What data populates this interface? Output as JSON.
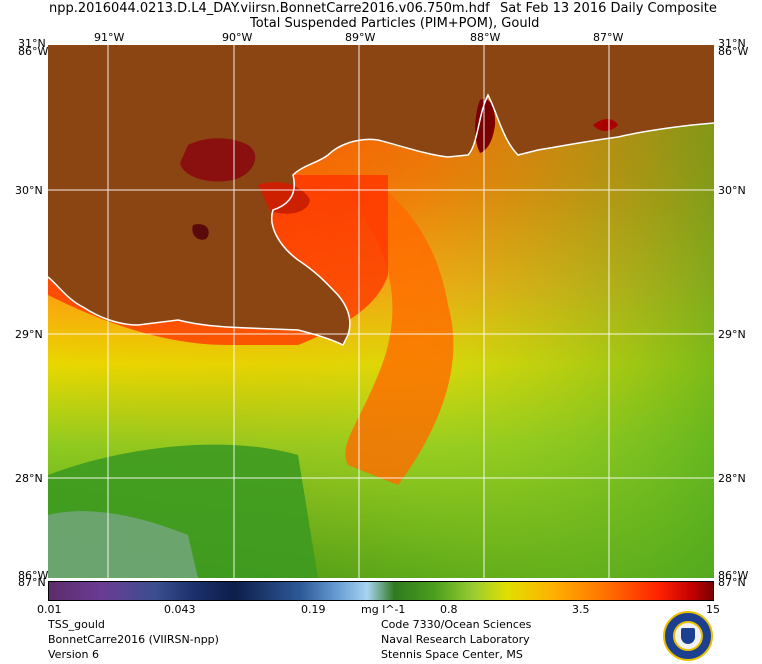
{
  "header": {
    "filename": "npp.2016044.0213.D.L4_DAY.viirsn.BonnetCarre2016.v06.750m.hdf",
    "date": "Sat Feb 13 2016 Daily Composite",
    "product": "Total Suspended Particles (PIM+POM), Gould"
  },
  "map": {
    "lon_labels": [
      "91°W",
      "90°W",
      "89°W",
      "88°W",
      "87°W"
    ],
    "lat_labels": [
      "30°N",
      "29°N",
      "28°N"
    ],
    "corner_top_left": "31°N",
    "corner_top_left_lon": "86°W",
    "corner_top_right": "31°N",
    "corner_top_right_lon": "86°W",
    "corner_bottom_left": "86°W",
    "corner_bottom_left_lat": "87°N",
    "corner_bottom_right": "86°W",
    "corner_bottom_right_lat": "87°N",
    "colors": {
      "land": "#8b4513",
      "coast": "#ffffff",
      "grid": "#ffffff"
    }
  },
  "colorbar": {
    "ticks": [
      "0.01",
      "0.043",
      "0.19",
      "0.8",
      "3.5",
      "15"
    ],
    "units": "mg l^-1"
  },
  "footer": {
    "left": [
      "TSS_gould",
      "BonnetCarre2016 (VIIRSN-npp)",
      "Version 6"
    ],
    "right": [
      "Code 7330/Ocean Sciences",
      "Naval Research Laboratory",
      "Stennis Space Center, MS"
    ]
  },
  "seal_icon": "naval-research-laboratory-seal-icon"
}
